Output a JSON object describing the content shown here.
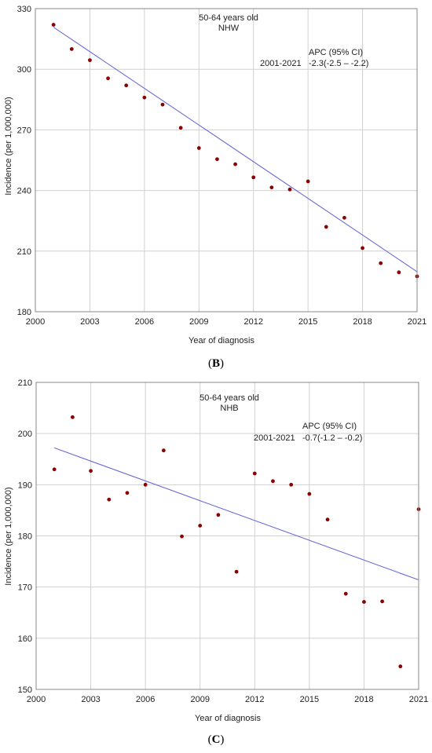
{
  "chart_data": [
    {
      "type": "scatter",
      "panel": "(B)",
      "annotation_lines": [
        "50-64 years old",
        "NHW"
      ],
      "apc_header": "APC (95% CI)",
      "apc_period": "2001-2021",
      "apc_value": "-2.3(-2.5 – -2.2)",
      "xlabel": "Year of diagnosis",
      "ylabel": "Incidence (per 1,000,000)",
      "xlim": [
        2000,
        2021
      ],
      "ylim": [
        180,
        330
      ],
      "x_ticks": [
        2000,
        2003,
        2006,
        2009,
        2012,
        2015,
        2018,
        2021
      ],
      "y_ticks": [
        180,
        210,
        240,
        270,
        300,
        330
      ],
      "grid": true,
      "x": [
        2001,
        2002,
        2003,
        2004,
        2005,
        2006,
        2007,
        2008,
        2009,
        2010,
        2011,
        2012,
        2013,
        2014,
        2015,
        2016,
        2017,
        2018,
        2019,
        2020,
        2021
      ],
      "observed": [
        322,
        310,
        304.5,
        295.5,
        292,
        286,
        282.5,
        271,
        261,
        255.5,
        253,
        246.5,
        241.5,
        240.5,
        244.5,
        222,
        226.5,
        211.5,
        204,
        199.5,
        197.5
      ],
      "fitted_endpoints": {
        "x": [
          2001,
          2021
        ],
        "y": [
          320.8,
          199.8
        ]
      },
      "point_color": "#8b0000",
      "line_color": "#6a6ad8"
    },
    {
      "type": "scatter",
      "panel": "(C)",
      "annotation_lines": [
        "50-64 years old",
        "NHB"
      ],
      "apc_header": "APC (95% CI)",
      "apc_period": "2001-2021",
      "apc_value": "-0.7(-1.2 – -0.2)",
      "xlabel": "Year of diagnosis",
      "ylabel": "Incidence (per 1,000,000)",
      "xlim": [
        2000,
        2021
      ],
      "ylim": [
        150,
        210
      ],
      "x_ticks": [
        2000,
        2003,
        2006,
        2009,
        2012,
        2015,
        2018,
        2021
      ],
      "y_ticks": [
        150,
        160,
        170,
        180,
        190,
        200,
        210
      ],
      "grid": true,
      "x": [
        2001,
        2002,
        2003,
        2004,
        2005,
        2006,
        2007,
        2008,
        2009,
        2010,
        2011,
        2012,
        2013,
        2014,
        2015,
        2016,
        2017,
        2018,
        2019,
        2020,
        2021
      ],
      "observed": [
        193,
        203.2,
        192.7,
        187.1,
        188.4,
        190,
        196.7,
        179.9,
        182,
        184.1,
        173,
        192.2,
        190.7,
        190,
        188.2,
        183.2,
        168.7,
        167.1,
        167.2,
        154.5,
        185.2
      ],
      "fitted_endpoints": {
        "x": [
          2001,
          2021
        ],
        "y": [
          197.2,
          171.4
        ]
      },
      "point_color": "#8b0000",
      "line_color": "#6a6ad8"
    }
  ]
}
